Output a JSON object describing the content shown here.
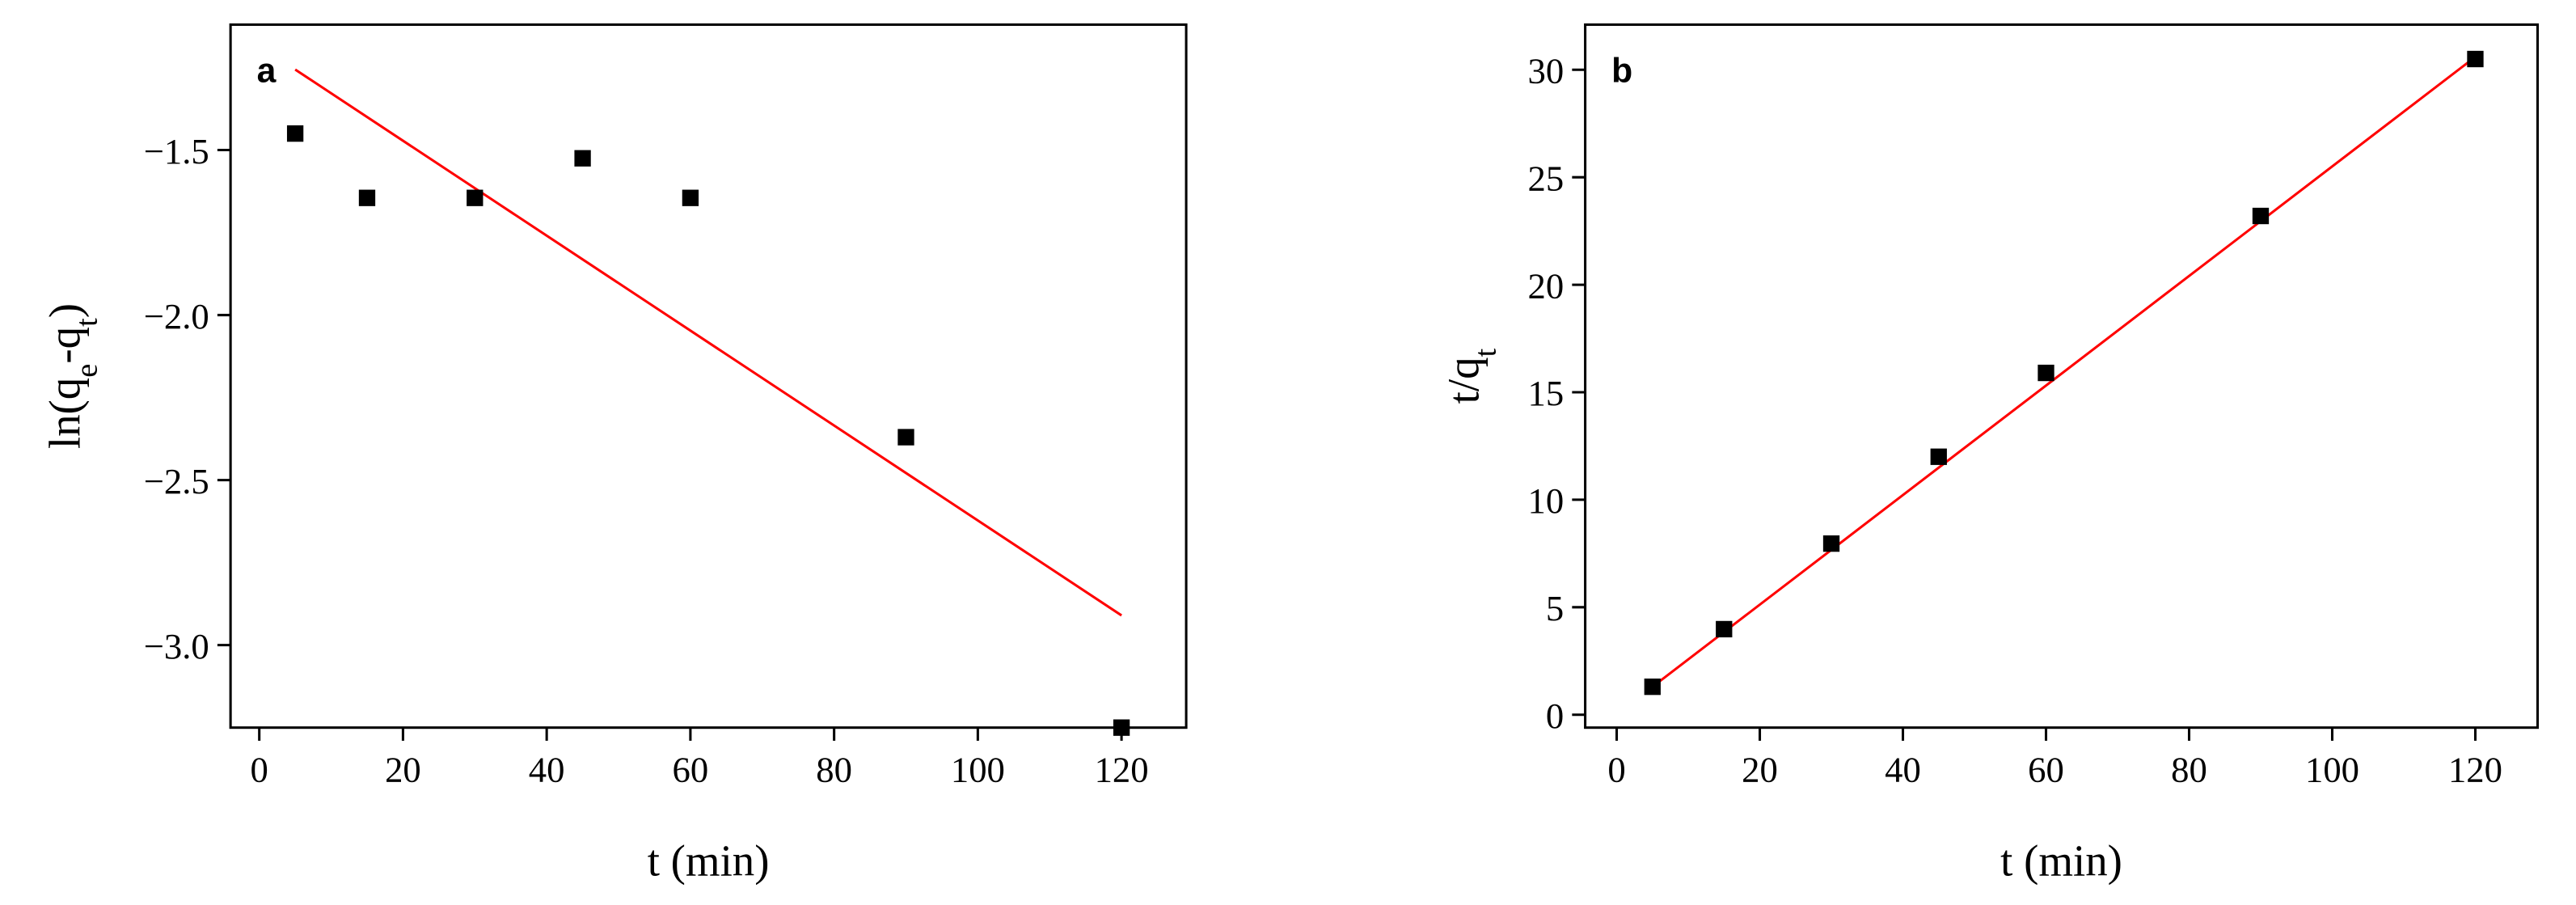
{
  "chart_data": [
    {
      "type": "scatter",
      "panel_label": "a",
      "xlabel": "t (min)",
      "ylabel_parts": [
        "ln(q",
        "e",
        "-q",
        "t",
        ")"
      ],
      "x": [
        5,
        15,
        30,
        45,
        60,
        90,
        120
      ],
      "values": [
        -1.45,
        -1.645,
        -1.645,
        -1.525,
        -1.645,
        -2.37,
        -3.25
      ],
      "color": "#000000",
      "fit": {
        "x": [
          5,
          120
        ],
        "values": [
          -1.256,
          -2.91
        ],
        "color": "#ff0000"
      },
      "xlim": [
        -4,
        129
      ],
      "ylim": [
        -3.25,
        -1.12
      ],
      "xticks": [
        0,
        20,
        40,
        60,
        80,
        100,
        120
      ],
      "yticks": [
        {
          "value": -1.5,
          "label": "−1.5"
        },
        {
          "value": -2.0,
          "label": "−2.0"
        },
        {
          "value": -2.5,
          "label": "−2.5"
        },
        {
          "value": -3.0,
          "label": "−3.0"
        }
      ]
    },
    {
      "type": "scatter",
      "panel_label": "b",
      "xlabel": "t (min)",
      "ylabel_parts": [
        "t/q",
        "t"
      ],
      "x": [
        5,
        15,
        30,
        45,
        60,
        90,
        120
      ],
      "values": [
        1.3,
        3.98,
        7.96,
        12.0,
        15.9,
        23.2,
        30.5
      ],
      "color": "#000000",
      "fit": {
        "x": [
          5,
          120
        ],
        "values": [
          1.3,
          30.6
        ],
        "color": "#ff0000"
      },
      "xlim": [
        -4.4,
        128.7
      ],
      "ylim": [
        -0.6,
        32.1
      ],
      "xticks": [
        0,
        20,
        40,
        60,
        80,
        100,
        120
      ],
      "yticks": [
        0,
        5,
        10,
        15,
        20,
        25,
        30
      ]
    }
  ]
}
